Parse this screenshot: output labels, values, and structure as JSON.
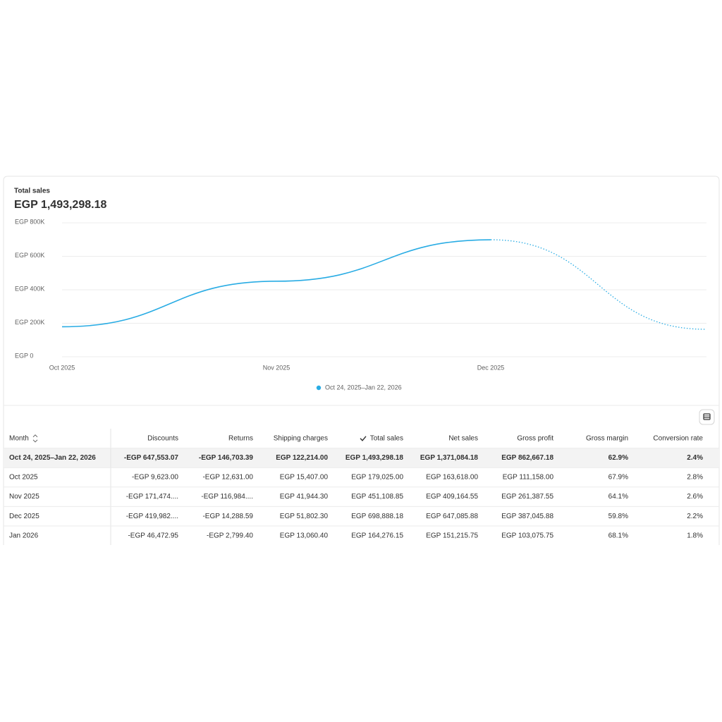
{
  "chart_data": {
    "type": "line",
    "title": "Total sales",
    "subtitle": "EGP 1,493,298.18",
    "categories": [
      "Oct 2025",
      "Nov 2025",
      "Dec 2025",
      null
    ],
    "series": [
      {
        "name": "Oct 24, 2025–Jan 22, 2026",
        "color": "#29ace4",
        "values": [
          179025.0,
          451108.85,
          698888.18,
          164276.15
        ]
      }
    ],
    "ylim": [
      0,
      800000
    ],
    "yticks": [
      {
        "value": 0,
        "label": "EGP 0"
      },
      {
        "value": 200000,
        "label": "EGP 200K"
      },
      {
        "value": 400000,
        "label": "EGP 400K"
      },
      {
        "value": 600000,
        "label": "EGP 600K"
      },
      {
        "value": 800000,
        "label": "EGP 800K"
      }
    ],
    "grid": true,
    "legend": "bottom"
  },
  "table": {
    "columns": [
      "Month",
      "Discounts",
      "Returns",
      "Shipping charges",
      "Total sales",
      "Net sales",
      "Gross profit",
      "Gross margin",
      "Conversion rate"
    ],
    "rows": [
      [
        "Oct 24, 2025–Jan 22, 2026",
        "-EGP 647,553.07",
        "-EGP 146,703.39",
        "EGP 122,214.00",
        "EGP 1,493,298.18",
        "EGP 1,371,084.18",
        "EGP 862,667.18",
        "62.9%",
        "2.4%"
      ],
      [
        "Oct 2025",
        "-EGP 9,623.00",
        "-EGP 12,631.00",
        "EGP 15,407.00",
        "EGP 179,025.00",
        "EGP 163,618.00",
        "EGP 111,158.00",
        "67.9%",
        "2.8%"
      ],
      [
        "Nov 2025",
        "-EGP 171,474....",
        "-EGP 116,984....",
        "EGP 41,944.30",
        "EGP 451,108.85",
        "EGP 409,164.55",
        "EGP 261,387.55",
        "64.1%",
        "2.6%"
      ],
      [
        "Dec 2025",
        "-EGP 419,982....",
        "-EGP 14,288.59",
        "EGP 51,802.30",
        "EGP 698,888.18",
        "EGP 647,085.88",
        "EGP 387,045.88",
        "59.8%",
        "2.2%"
      ],
      [
        "Jan 2026",
        "-EGP 46,472.95",
        "-EGP 2,799.40",
        "EGP 13,060.40",
        "EGP 164,276.15",
        "EGP 151,215.75",
        "EGP 103,075.75",
        "68.1%",
        "1.8%"
      ]
    ]
  }
}
